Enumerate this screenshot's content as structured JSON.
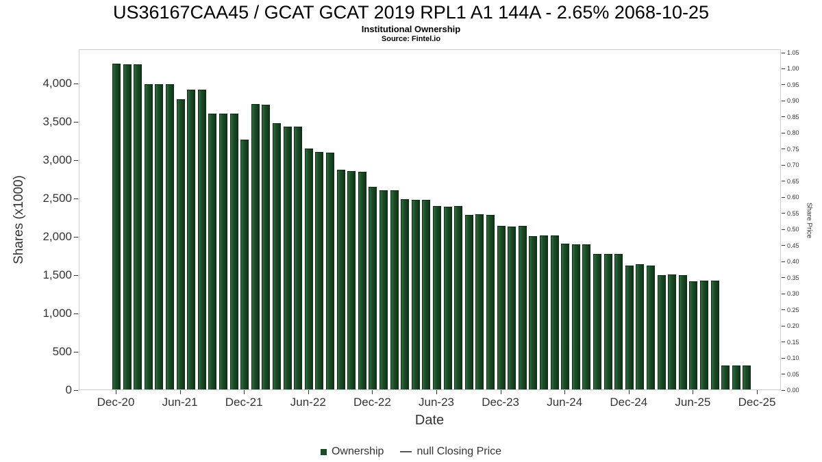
{
  "chart_data": {
    "type": "bar",
    "title": "US36167CAA45 / GCAT GCAT 2019 RPL1 A1 144A - 2.65% 2068-10-25",
    "subtitle": "Institutional Ownership",
    "source": "Source: Fintel.io",
    "xlabel": "Date",
    "ylabel": "Shares (x1000)",
    "ylabel_right": "Share Price",
    "grid": false,
    "legend_position": "bottom",
    "categories": [
      "Dec-20",
      "Jan-21",
      "Feb-21",
      "Mar-21",
      "Apr-21",
      "May-21",
      "Jun-21",
      "Jul-21",
      "Aug-21",
      "Sep-21",
      "Oct-21",
      "Nov-21",
      "Dec-21",
      "Jan-22",
      "Feb-22",
      "Mar-22",
      "Apr-22",
      "May-22",
      "Jun-22",
      "Jul-22",
      "Aug-22",
      "Sep-22",
      "Oct-22",
      "Nov-22",
      "Dec-22",
      "Jan-23",
      "Feb-23",
      "Mar-23",
      "Apr-23",
      "May-23",
      "Jun-23",
      "Jul-23",
      "Aug-23",
      "Sep-23",
      "Oct-23",
      "Nov-23",
      "Dec-23",
      "Jan-24",
      "Feb-24",
      "Mar-24",
      "Apr-24",
      "May-24",
      "Jun-24",
      "Jul-24",
      "Aug-24",
      "Sep-24",
      "Oct-24",
      "Nov-24",
      "Dec-24",
      "Jan-25",
      "Feb-25",
      "Mar-25",
      "Apr-25",
      "May-25",
      "Jun-25",
      "Jul-25",
      "Aug-25",
      "Sep-25",
      "Oct-25",
      "Nov-25"
    ],
    "series": [
      {
        "name": "Ownership",
        "color": "#1b4a26",
        "values": [
          4250,
          4240,
          4245,
          3980,
          3985,
          3980,
          3790,
          3915,
          3910,
          3600,
          3595,
          3600,
          3255,
          3720,
          3715,
          3475,
          3430,
          3425,
          3140,
          3095,
          3090,
          2870,
          2845,
          2840,
          2640,
          2600,
          2595,
          2480,
          2475,
          2470,
          2390,
          2380,
          2390,
          2280,
          2285,
          2280,
          2130,
          2125,
          2130,
          2000,
          2010,
          2005,
          1900,
          1890,
          1895,
          1770,
          1765,
          1770,
          1620,
          1630,
          1620,
          1495,
          1500,
          1495,
          1415,
          1420,
          1420,
          310,
          310,
          310
        ]
      }
    ],
    "x_tick_labels": [
      "Dec-20",
      "Jun-21",
      "Dec-21",
      "Jun-22",
      "Dec-22",
      "Jun-23",
      "Dec-23",
      "Jun-24",
      "Dec-24",
      "Jun-25",
      "Dec-25"
    ],
    "x_tick_indices": [
      0,
      6,
      12,
      18,
      24,
      30,
      36,
      42,
      48,
      54,
      60
    ],
    "left_axis": {
      "min": 0,
      "max": 4000,
      "step": 500
    },
    "right_axis": {
      "min": 0.0,
      "max": 1.05,
      "step": 0.05
    },
    "legend": [
      {
        "label": "Ownership",
        "marker": "square",
        "color": "#1b4a26"
      },
      {
        "label": "null Closing Price",
        "marker": "line",
        "color": "#555555"
      }
    ]
  }
}
